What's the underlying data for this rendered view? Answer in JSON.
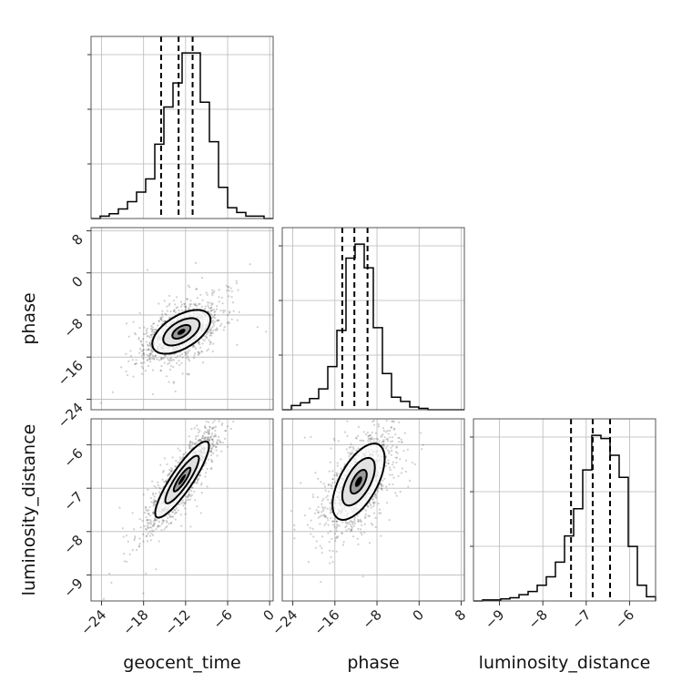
{
  "chart_data": {
    "type": "corner",
    "parameters": [
      "geocent_time",
      "phase",
      "luminosity_distance"
    ],
    "axes": {
      "geocent_time": {
        "label": "geocent_time",
        "range": [
          -25.5,
          0.5
        ],
        "ticks": [
          -24,
          -18,
          -12,
          -6,
          0
        ],
        "tick_labels": [
          "−24",
          "−18",
          "−12",
          "−6",
          "0"
        ]
      },
      "phase": {
        "label": "phase",
        "range": [
          -26,
          8.6
        ],
        "ticks": [
          -24,
          -16,
          -8,
          0,
          8
        ],
        "tick_labels": [
          "−24",
          "−16",
          "−8",
          "0",
          "8"
        ]
      },
      "luminosity_distance": {
        "label": "luminosity_distance",
        "range": [
          -9.6,
          -5.4
        ],
        "ticks": [
          -9,
          -8,
          -7,
          -6
        ],
        "tick_labels": [
          "−9",
          "−8",
          "−7",
          "−6"
        ]
      }
    },
    "histograms": [
      {
        "parameter": "geocent_time",
        "quantiles": [
          -15.5,
          -13.0,
          -11.0
        ],
        "bin_start": -25.5,
        "bin_width": 1.3,
        "counts": [
          0,
          2,
          4,
          8,
          14,
          22,
          33,
          62,
          93,
          113,
          138,
          138,
          97,
          64,
          26,
          9,
          5,
          2,
          2,
          0
        ]
      },
      {
        "parameter": "phase",
        "quantiles": [
          -14.6,
          -12.3,
          -9.8
        ],
        "bin_start": -26,
        "bin_width": 1.73,
        "counts": [
          0,
          3,
          5,
          8,
          15,
          31,
          57,
          109,
          119,
          102,
          59,
          26,
          9,
          6,
          2,
          1,
          0,
          0,
          0,
          0
        ]
      },
      {
        "parameter": "luminosity_distance",
        "quantiles": [
          -7.35,
          -6.85,
          -6.45
        ],
        "bin_start": -9.6,
        "bin_width": 0.21,
        "counts": [
          0,
          1,
          1,
          2,
          3,
          6,
          9,
          15,
          23,
          37,
          62,
          88,
          125,
          158,
          155,
          139,
          118,
          52,
          15,
          4
        ]
      }
    ],
    "joint_panels": [
      {
        "x": "geocent_time",
        "y": "phase",
        "center": [
          -12.6,
          -11.2
        ],
        "spread": [
          2.6,
          2.6
        ],
        "correlation": 0.55
      },
      {
        "x": "geocent_time",
        "y": "luminosity_distance",
        "center": [
          -12.5,
          -6.8
        ],
        "spread": [
          2.4,
          0.55
        ],
        "correlation": 0.88
      },
      {
        "x": "phase",
        "y": "luminosity_distance",
        "center": [
          -11.5,
          -6.85
        ],
        "spread": [
          3.1,
          0.55
        ],
        "correlation": 0.6
      }
    ],
    "grid": true
  }
}
